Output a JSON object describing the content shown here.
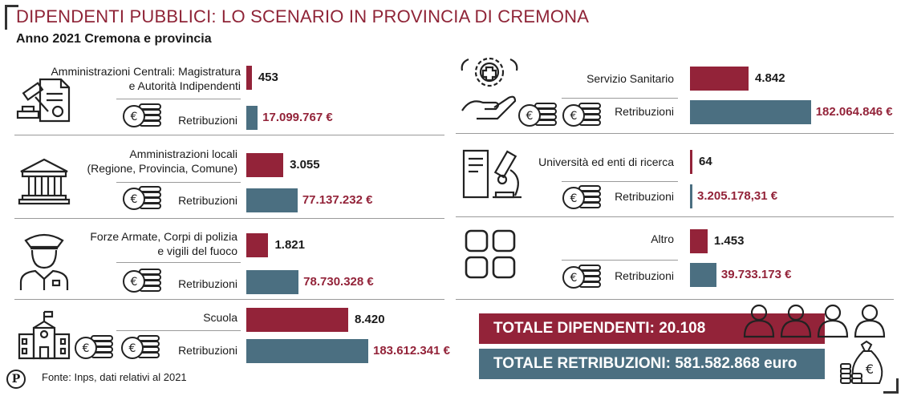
{
  "title": "DIPENDENTI PUBBLICI: LO SCENARIO IN PROVINCIA DI CREMONA",
  "subtitle": "Anno 2021 Cremona e provincia",
  "source": "Fonte: Inps, dati relativi al 2021",
  "logo_letter": "P",
  "colors": {
    "employees": "#932339",
    "salaries": "#4b6f81",
    "title": "#8f2437"
  },
  "chart_data": {
    "type": "bar",
    "orientation": "horizontal",
    "series": [
      {
        "name": "Dipendenti",
        "unit": "count"
      },
      {
        "name": "Retribuzioni",
        "unit": "€"
      }
    ],
    "categories": [
      {
        "name_lines": [
          "Amministrazioni Centrali: Magistratura",
          "e Autorità Indipendenti"
        ],
        "icon": "judge-gavel-icon",
        "employees": 453,
        "employees_label": "453",
        "salaries_label_text": "Retribuzioni",
        "salaries": 17099767,
        "salaries_label": "17.099.767 €"
      },
      {
        "name_lines": [
          "Amministrazioni locali",
          "(Regione, Provincia, Comune)"
        ],
        "icon": "government-building-icon",
        "employees": 3055,
        "employees_label": "3.055",
        "salaries_label_text": "Retribuzioni",
        "salaries": 77137232,
        "salaries_label": "77.137.232 €"
      },
      {
        "name_lines": [
          "Forze Armate, Corpi di polizia",
          "e vigili del fuoco"
        ],
        "icon": "police-officer-icon",
        "employees": 1821,
        "employees_label": "1.821",
        "salaries_label_text": "Retribuzioni",
        "salaries": 78730328,
        "salaries_label": "78.730.328 €"
      },
      {
        "name_lines": [
          "Scuola"
        ],
        "icon": "school-building-icon",
        "employees": 8420,
        "employees_label": "8.420",
        "salaries_label_text": "Retribuzioni",
        "salaries": 183612341,
        "salaries_label": "183.612.341 €"
      },
      {
        "name_lines": [
          "Servizio Sanitario"
        ],
        "icon": "healthcare-hand-icon",
        "employees": 4842,
        "employees_label": "4.842",
        "salaries_label_text": "Retribuzioni",
        "salaries": 182064846,
        "salaries_label": "182.064.846 €"
      },
      {
        "name_lines": [
          "Università ed enti di ricerca"
        ],
        "icon": "research-microscope-icon",
        "employees": 64,
        "employees_label": "64",
        "salaries_label_text": "Retribuzioni",
        "salaries": 3205178.31,
        "salaries_label": "3.205.178,31 €"
      },
      {
        "name_lines": [
          "Altro"
        ],
        "icon": "grid-squares-icon",
        "employees": 1453,
        "employees_label": "1.453",
        "salaries_label_text": "Retribuzioni",
        "salaries": 39733173,
        "salaries_label": "39.733.173 €"
      }
    ],
    "totals": {
      "employees_label": "TOTALE DIPENDENTI: 20.108",
      "employees": 20108,
      "salaries_label": "TOTALE RETRIBUZIONI: 581.582.868 euro",
      "salaries": 581582868
    }
  }
}
